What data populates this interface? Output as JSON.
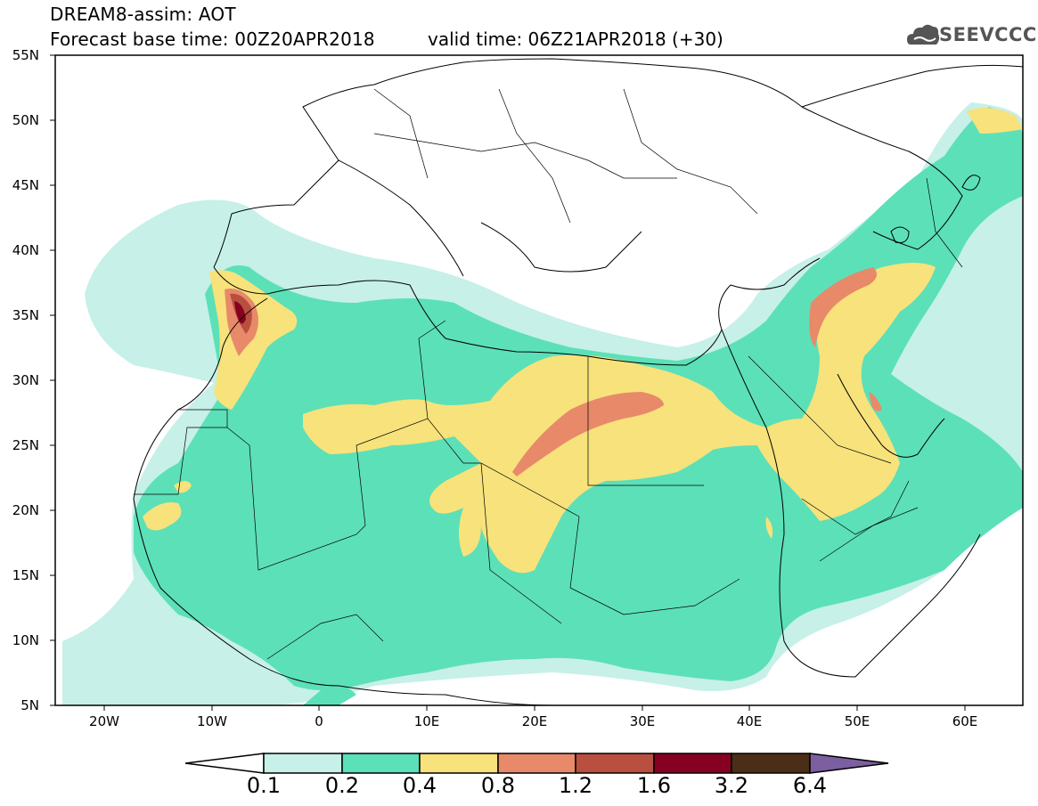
{
  "title": {
    "line1": "DREAM8-assim: AOT",
    "line2": "Forecast base time: 00Z20APR2018",
    "valid": "valid time: 06Z21APR2018 (+30)"
  },
  "logo": {
    "text": "SEEVCCC",
    "icon": "cloud-icon"
  },
  "map": {
    "region": "North Africa, Middle East, Europe",
    "lat_labels": [
      "55N",
      "50N",
      "45N",
      "40N",
      "35N",
      "30N",
      "25N",
      "20N",
      "15N",
      "10N",
      "5N"
    ],
    "lon_labels": [
      "20W",
      "10W",
      "0",
      "10E",
      "20E",
      "30E",
      "40E",
      "50E",
      "60E"
    ],
    "lat_range": [
      5,
      55
    ],
    "lon_range": [
      -25,
      65
    ]
  },
  "colorbar": {
    "labels": [
      "0.1",
      "0.2",
      "0.4",
      "0.8",
      "1.2",
      "1.6",
      "3.2",
      "6.4"
    ],
    "colors": [
      "#ffffff",
      "#c6f0e8",
      "#5ce0b8",
      "#f7e27b",
      "#e8896a",
      "#b84f3f",
      "#860022",
      "#4a2e17",
      "#7b5fa0"
    ]
  },
  "field_colors": {
    "level_0.1": "#c6f0e8",
    "level_0.2": "#5ce0b8",
    "level_0.4": "#f7e27b",
    "level_0.8": "#e8896a",
    "level_1.2": "#b84f3f",
    "level_1.6": "#860022"
  }
}
